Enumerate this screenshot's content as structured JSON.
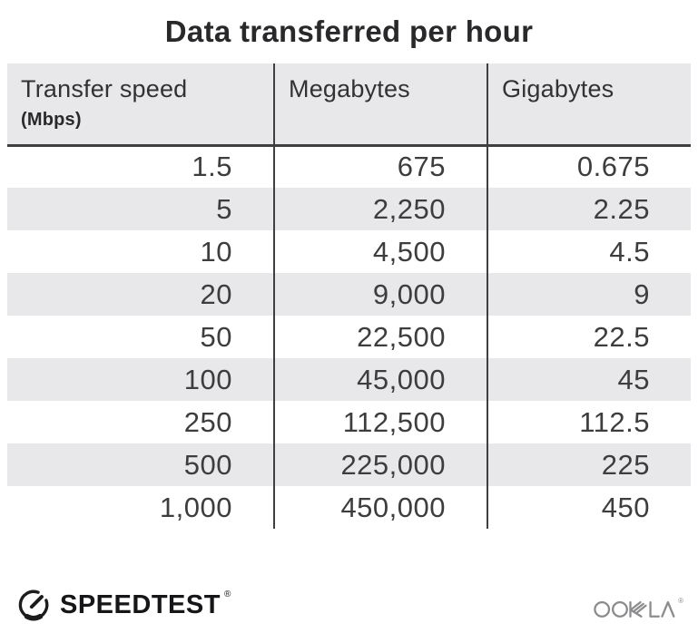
{
  "title": "Data transferred per hour",
  "table": {
    "columns": [
      {
        "label": "Transfer speed",
        "sublabel": "(Mbps)"
      },
      {
        "label": "Megabytes",
        "sublabel": ""
      },
      {
        "label": "Gigabytes",
        "sublabel": ""
      }
    ],
    "rows": [
      [
        "1.5",
        "675",
        "0.675"
      ],
      [
        "5",
        "2,250",
        "2.25"
      ],
      [
        "10",
        "4,500",
        "4.5"
      ],
      [
        "20",
        "9,000",
        "9"
      ],
      [
        "50",
        "22,500",
        "22.5"
      ],
      [
        "100",
        "45,000",
        "45"
      ],
      [
        "250",
        "112,500",
        "112.5"
      ],
      [
        "500",
        "225,000",
        "225"
      ],
      [
        "1,000",
        "450,000",
        "450"
      ]
    ]
  },
  "footer": {
    "brand": "SPEEDTEST",
    "brand_reg": "®",
    "attribution": "OOKLA",
    "attribution_reg": "®"
  },
  "colors": {
    "header_bg": "#e8e7ea",
    "stripe_bg": "#e8e7ea",
    "divider_line": "#3f3f41",
    "title_text": "#29292b",
    "number_text": "#3d3d3f",
    "brand_black": "#161618",
    "ookla_gray": "#8c8c8e"
  },
  "chart_data": {
    "type": "table",
    "title": "Data transferred per hour",
    "columns": [
      "Transfer speed (Mbps)",
      "Megabytes",
      "Gigabytes"
    ],
    "rows": [
      [
        1.5,
        675,
        0.675
      ],
      [
        5,
        2250,
        2.25
      ],
      [
        10,
        4500,
        4.5
      ],
      [
        20,
        9000,
        9
      ],
      [
        50,
        22500,
        22.5
      ],
      [
        100,
        45000,
        45
      ],
      [
        250,
        112500,
        112.5
      ],
      [
        500,
        225000,
        225
      ],
      [
        1000,
        450000,
        450
      ]
    ]
  }
}
